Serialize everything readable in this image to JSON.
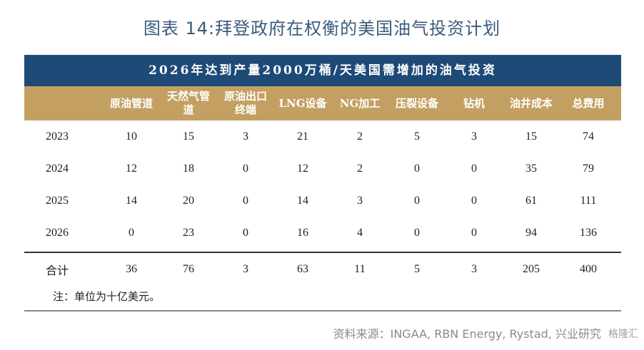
{
  "title": "图表 14:拜登政府在权衡的美国油气投资计划",
  "table": {
    "banner": "2026年达到产量2000万桶/天美国需增加的油气投资",
    "headers": [
      "",
      "原油管道",
      "天然气管道",
      "原油出口终端",
      "LNG设备",
      "NG加工",
      "压裂设备",
      "钻机",
      "油井成本",
      "总费用"
    ],
    "rows": [
      [
        "2023",
        "10",
        "15",
        "3",
        "21",
        "2",
        "5",
        "3",
        "15",
        "74"
      ],
      [
        "2024",
        "12",
        "18",
        "0",
        "12",
        "2",
        "0",
        "0",
        "35",
        "79"
      ],
      [
        "2025",
        "14",
        "20",
        "0",
        "14",
        "3",
        "0",
        "0",
        "61",
        "111"
      ],
      [
        "2026",
        "0",
        "23",
        "0",
        "16",
        "4",
        "0",
        "0",
        "94",
        "136"
      ]
    ],
    "total": [
      "合计",
      "36",
      "76",
      "3",
      "63",
      "11",
      "5",
      "3",
      "205",
      "400"
    ],
    "note": "注：单位为十亿美元。"
  },
  "source": "资料来源：INGAA, RBN Energy, Rystad, 兴业研究",
  "watermark": "格隆汇",
  "colors": {
    "banner": "#1e4a78",
    "header": "#c3a061",
    "title": "#3b5b7c"
  }
}
